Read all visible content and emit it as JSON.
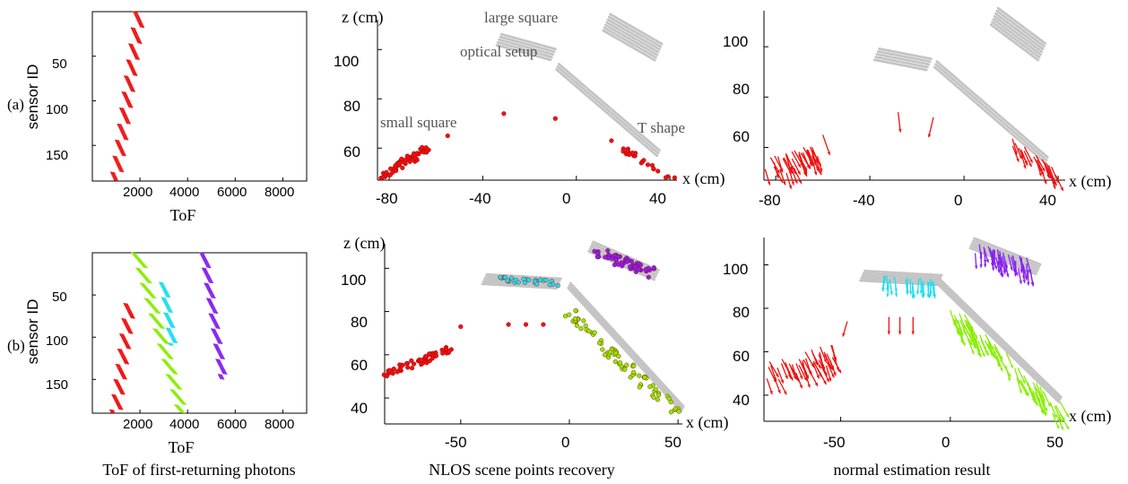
{
  "row_labels": [
    "(a)",
    "(b)"
  ],
  "column_captions": [
    "ToF of first-returning photons",
    "NLOS scene points recovery",
    "normal estimation result"
  ],
  "colors": {
    "red": "#ee1111",
    "green": "#88ee00",
    "cyan": "#22ddee",
    "purple": "#8822ee",
    "gray": "#c4c4c4"
  },
  "chart_data": [
    {
      "id": "a1",
      "type": "scatter",
      "panel": "ToF (a)",
      "xlabel": "ToF",
      "ylabel": "sensor ID",
      "xlim": [
        0,
        9000
      ],
      "ylim": [
        190,
        0
      ],
      "y_inverted": true,
      "xticks": [
        "2000",
        "4000",
        "6000",
        "8000"
      ],
      "yticks": [
        "50",
        "100",
        "150"
      ],
      "series": [
        {
          "color": "red",
          "sawtooth": {
            "start": 2000,
            "end": 1000,
            "amplitude": 450,
            "rows": 190,
            "period": 18
          }
        }
      ]
    },
    {
      "id": "b1",
      "type": "scatter",
      "panel": "ToF (b)",
      "xlabel": "ToF",
      "ylabel": "sensor ID",
      "xlim": [
        0,
        9000
      ],
      "ylim": [
        190,
        0
      ],
      "y_inverted": true,
      "xticks": [
        "2000",
        "4000",
        "6000",
        "8000"
      ],
      "yticks": [
        "50",
        "100",
        "150"
      ],
      "series": [
        {
          "color": "red",
          "sawtooth": {
            "rows_from": 60,
            "rows_to": 190,
            "start": 1600,
            "end": 1000,
            "amplitude": 450,
            "period": 18
          }
        },
        {
          "color": "green",
          "sawtooth": {
            "rows_from": 0,
            "rows_to": 190,
            "start": 1900,
            "end": 3800,
            "amplitude": 400,
            "period": 18
          }
        },
        {
          "color": "cyan",
          "sawtooth": {
            "rows_from": 35,
            "rows_to": 110,
            "start": 3000,
            "end": 3400,
            "amplitude": 250,
            "period": 18
          }
        },
        {
          "color": "purple",
          "sawtooth": {
            "rows_from": 0,
            "rows_to": 150,
            "start": 4700,
            "end": 5500,
            "amplitude": 250,
            "period": 18
          }
        }
      ]
    },
    {
      "id": "a2",
      "type": "scatter",
      "panel": "NLOS scene points recovery (a)",
      "xlabel": "x (cm)",
      "ylabel": "z (cm)",
      "xlim": [
        -85,
        43
      ],
      "ylim": [
        47,
        115
      ],
      "xticks": [
        -80,
        -40,
        0,
        40
      ],
      "yticks": [
        60,
        80,
        100
      ],
      "annotations": [
        {
          "text": "large square",
          "x": -30,
          "y": 112
        },
        {
          "text": "optical setup",
          "x": -38,
          "y": 102
        },
        {
          "text": "small square",
          "x": -67,
          "y": 75
        },
        {
          "text": "T shape",
          "x": 26,
          "y": 69
        }
      ],
      "gray_bands": [
        {
          "from": [
            13,
            111
          ],
          "to": [
            35,
            99
          ],
          "width": 6
        },
        {
          "from": [
            -33,
            104
          ],
          "to": [
            -10,
            98
          ],
          "width": 5
        },
        {
          "from": [
            -8,
            93
          ],
          "to": [
            35,
            58
          ],
          "width": 3
        }
      ],
      "red_segments": [
        {
          "from": [
            -83,
            49
          ],
          "to": [
            -63,
            60
          ],
          "n": 60,
          "jitter": 1.5
        },
        {
          "from": [
            20,
            60
          ],
          "to": [
            40,
            47
          ],
          "n": 22,
          "jitter": 1.0
        }
      ],
      "red_points": [
        [
          -55,
          65
        ],
        [
          -31,
          74
        ],
        [
          -9,
          72
        ],
        [
          15,
          63
        ],
        [
          42,
          48
        ]
      ]
    },
    {
      "id": "a3",
      "type": "scatter",
      "panel": "normal estimation result (a)",
      "xlabel": "x (cm)",
      "xlim": [
        -85,
        43
      ],
      "ylim": [
        47,
        115
      ],
      "xticks": [
        -80,
        -40,
        0,
        40
      ],
      "yticks": [
        60,
        80,
        100
      ],
      "gray_bands": [
        {
          "from": [
            13,
            112
          ],
          "to": [
            33,
            98
          ],
          "width": 6
        },
        {
          "from": [
            -37,
            97
          ],
          "to": [
            -15,
            93
          ],
          "width": 5
        },
        {
          "from": [
            -12,
            93
          ],
          "to": [
            35,
            55
          ],
          "width": 3
        }
      ],
      "arrow_segments": [
        {
          "from": [
            -83,
            52
          ],
          "to": [
            -63,
            58
          ],
          "n": 40,
          "color": "red",
          "jitter": 4,
          "dx": 3,
          "dy": -7
        },
        {
          "from": [
            20,
            62
          ],
          "to": [
            40,
            49
          ],
          "n": 24,
          "color": "red",
          "jitter": 2,
          "dx": 3,
          "dy": -7
        }
      ],
      "arrows": [
        {
          "at": [
            -60,
            65
          ],
          "d": [
            3,
            -8
          ],
          "color": "red"
        },
        {
          "at": [
            -28,
            74
          ],
          "d": [
            1,
            -8
          ],
          "color": "red"
        },
        {
          "at": [
            -13,
            72
          ],
          "d": [
            -2,
            -8
          ],
          "color": "red"
        }
      ]
    },
    {
      "id": "b2",
      "type": "scatter",
      "panel": "NLOS scene points recovery (b)",
      "xlabel": "x (cm)",
      "ylabel": "z (cm)",
      "xlim": [
        -85,
        52
      ],
      "ylim": [
        28,
        113
      ],
      "xticks": [
        -50,
        0,
        50
      ],
      "yticks": [
        40,
        60,
        80,
        100
      ],
      "gray_bands": [
        {
          "from": [
            10,
            110
          ],
          "to": [
            40,
            97
          ],
          "width": 5
        },
        {
          "from": [
            -39,
            95
          ],
          "to": [
            -5,
            93
          ],
          "width": 5
        },
        {
          "from": [
            0,
            92
          ],
          "to": [
            52,
            35
          ],
          "width": 3
        }
      ],
      "colored_segments": [
        {
          "color": "red",
          "from": [
            -85,
            51
          ],
          "to": [
            -55,
            62
          ],
          "n": 55,
          "jitter": 1.8
        },
        {
          "color": "green",
          "from": [
            0,
            80
          ],
          "to": [
            50,
            32
          ],
          "n": 80,
          "jitter": 2.5
        },
        {
          "color": "cyan",
          "from": [
            -32,
            95
          ],
          "to": [
            -5,
            93
          ],
          "n": 28,
          "jitter": 1.2
        },
        {
          "color": "purple",
          "from": [
            12,
            108
          ],
          "to": [
            38,
            98
          ],
          "n": 55,
          "jitter": 2.5
        }
      ],
      "red_points": [
        [
          -50,
          73
        ],
        [
          -28,
          74
        ],
        [
          -20,
          74
        ],
        [
          -12,
          74
        ]
      ]
    },
    {
      "id": "b3",
      "type": "scatter",
      "panel": "normal estimation result (b)",
      "xlabel": "x (cm)",
      "xlim": [
        -85,
        52
      ],
      "ylim": [
        28,
        113
      ],
      "xticks": [
        -50,
        0,
        50
      ],
      "yticks": [
        40,
        60,
        80,
        100
      ],
      "gray_bands": [
        {
          "from": [
            10,
            110
          ],
          "to": [
            40,
            98
          ],
          "width": 5
        },
        {
          "from": [
            -40,
            95
          ],
          "to": [
            -5,
            93
          ],
          "width": 5
        },
        {
          "from": [
            -5,
            92
          ],
          "to": [
            50,
            38
          ],
          "width": 3
        }
      ],
      "arrow_segments": [
        {
          "from": [
            -85,
            50
          ],
          "to": [
            -52,
            60
          ],
          "n": 45,
          "color": "red",
          "jitter": 5,
          "dx": 3,
          "dy": -8
        },
        {
          "from": [
            -2,
            80
          ],
          "to": [
            50,
            33
          ],
          "n": 70,
          "color": "green",
          "jitter": 4,
          "dx": 3,
          "dy": -8
        },
        {
          "from": [
            -32,
            94
          ],
          "to": [
            -5,
            92
          ],
          "n": 22,
          "color": "cyan",
          "jitter": 1.5,
          "dx": 0,
          "dy": -8
        },
        {
          "from": [
            12,
            108
          ],
          "to": [
            36,
            100
          ],
          "n": 40,
          "color": "purple",
          "jitter": 3,
          "dx": 1,
          "dy": -8
        }
      ],
      "arrows": [
        {
          "at": [
            -28,
            76
          ],
          "d": [
            0,
            -8
          ],
          "color": "red"
        },
        {
          "at": [
            -23,
            76
          ],
          "d": [
            0,
            -8
          ],
          "color": "red"
        },
        {
          "at": [
            -17,
            76
          ],
          "d": [
            0,
            -8
          ],
          "color": "red"
        },
        {
          "at": [
            -47,
            74
          ],
          "d": [
            -2,
            -7
          ],
          "color": "red"
        }
      ]
    }
  ]
}
